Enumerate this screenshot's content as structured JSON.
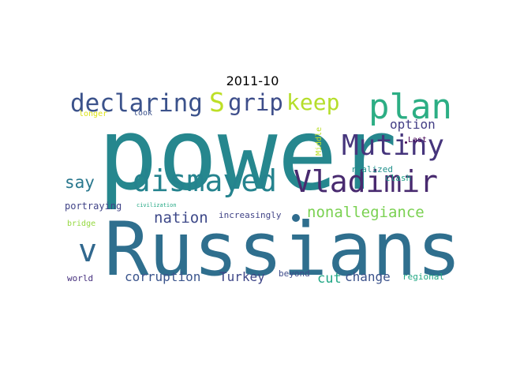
{
  "title": "2011-10",
  "words": [
    {
      "text": "power",
      "color": "#26878e"
    },
    {
      "text": "Russians",
      "color": "#2f6f8e"
    },
    {
      "text": "Mutiny",
      "color": "#46357c"
    },
    {
      "text": "plan",
      "color": "#2cae84"
    },
    {
      "text": "Vladimir",
      "color": "#482a6f"
    },
    {
      "text": "dismayed",
      "color": "#25838e"
    },
    {
      "text": "declaring",
      "color": "#3b528b"
    },
    {
      "text": "grip",
      "color": "#3d4d8a"
    },
    {
      "text": "keep",
      "color": "#b5de2b"
    },
    {
      "text": "S",
      "color": "#bddf26"
    },
    {
      "text": "v",
      "color": "#31688e"
    },
    {
      "text": "nonallegiance",
      "color": "#7ad151"
    },
    {
      "text": "nation",
      "color": "#3e4989"
    },
    {
      "text": "option",
      "color": "#433e85"
    },
    {
      "text": "say",
      "color": "#2a788e"
    },
    {
      "text": "corruption",
      "color": "#3a548c"
    },
    {
      "text": "Turkey",
      "color": "#3f4788"
    },
    {
      "text": "change",
      "color": "#3b528b"
    },
    {
      "text": "cut",
      "color": "#21a685"
    },
    {
      "text": "increasingly",
      "color": "#414487"
    },
    {
      "text": "portraying",
      "color": "#404387"
    },
    {
      "text": "realized",
      "color": "#21918c"
    },
    {
      "text": "clash",
      "color": "#1fa187"
    },
    {
      "text": "longer",
      "color": "#dde318"
    },
    {
      "text": "look",
      "color": "#3b528b"
    },
    {
      "text": "bridge",
      "color": "#95d840"
    },
    {
      "text": "world",
      "color": "#46307e"
    },
    {
      "text": "beyond",
      "color": "#3e4c8a"
    },
    {
      "text": "regional",
      "color": "#22a884"
    },
    {
      "text": "civilization",
      "color": "#22a884"
    },
    {
      "text": "Middle",
      "color": "#bade28"
    },
    {
      "text": "Last",
      "color": "#440154"
    }
  ],
  "dot_color": "#2f6c8e"
}
